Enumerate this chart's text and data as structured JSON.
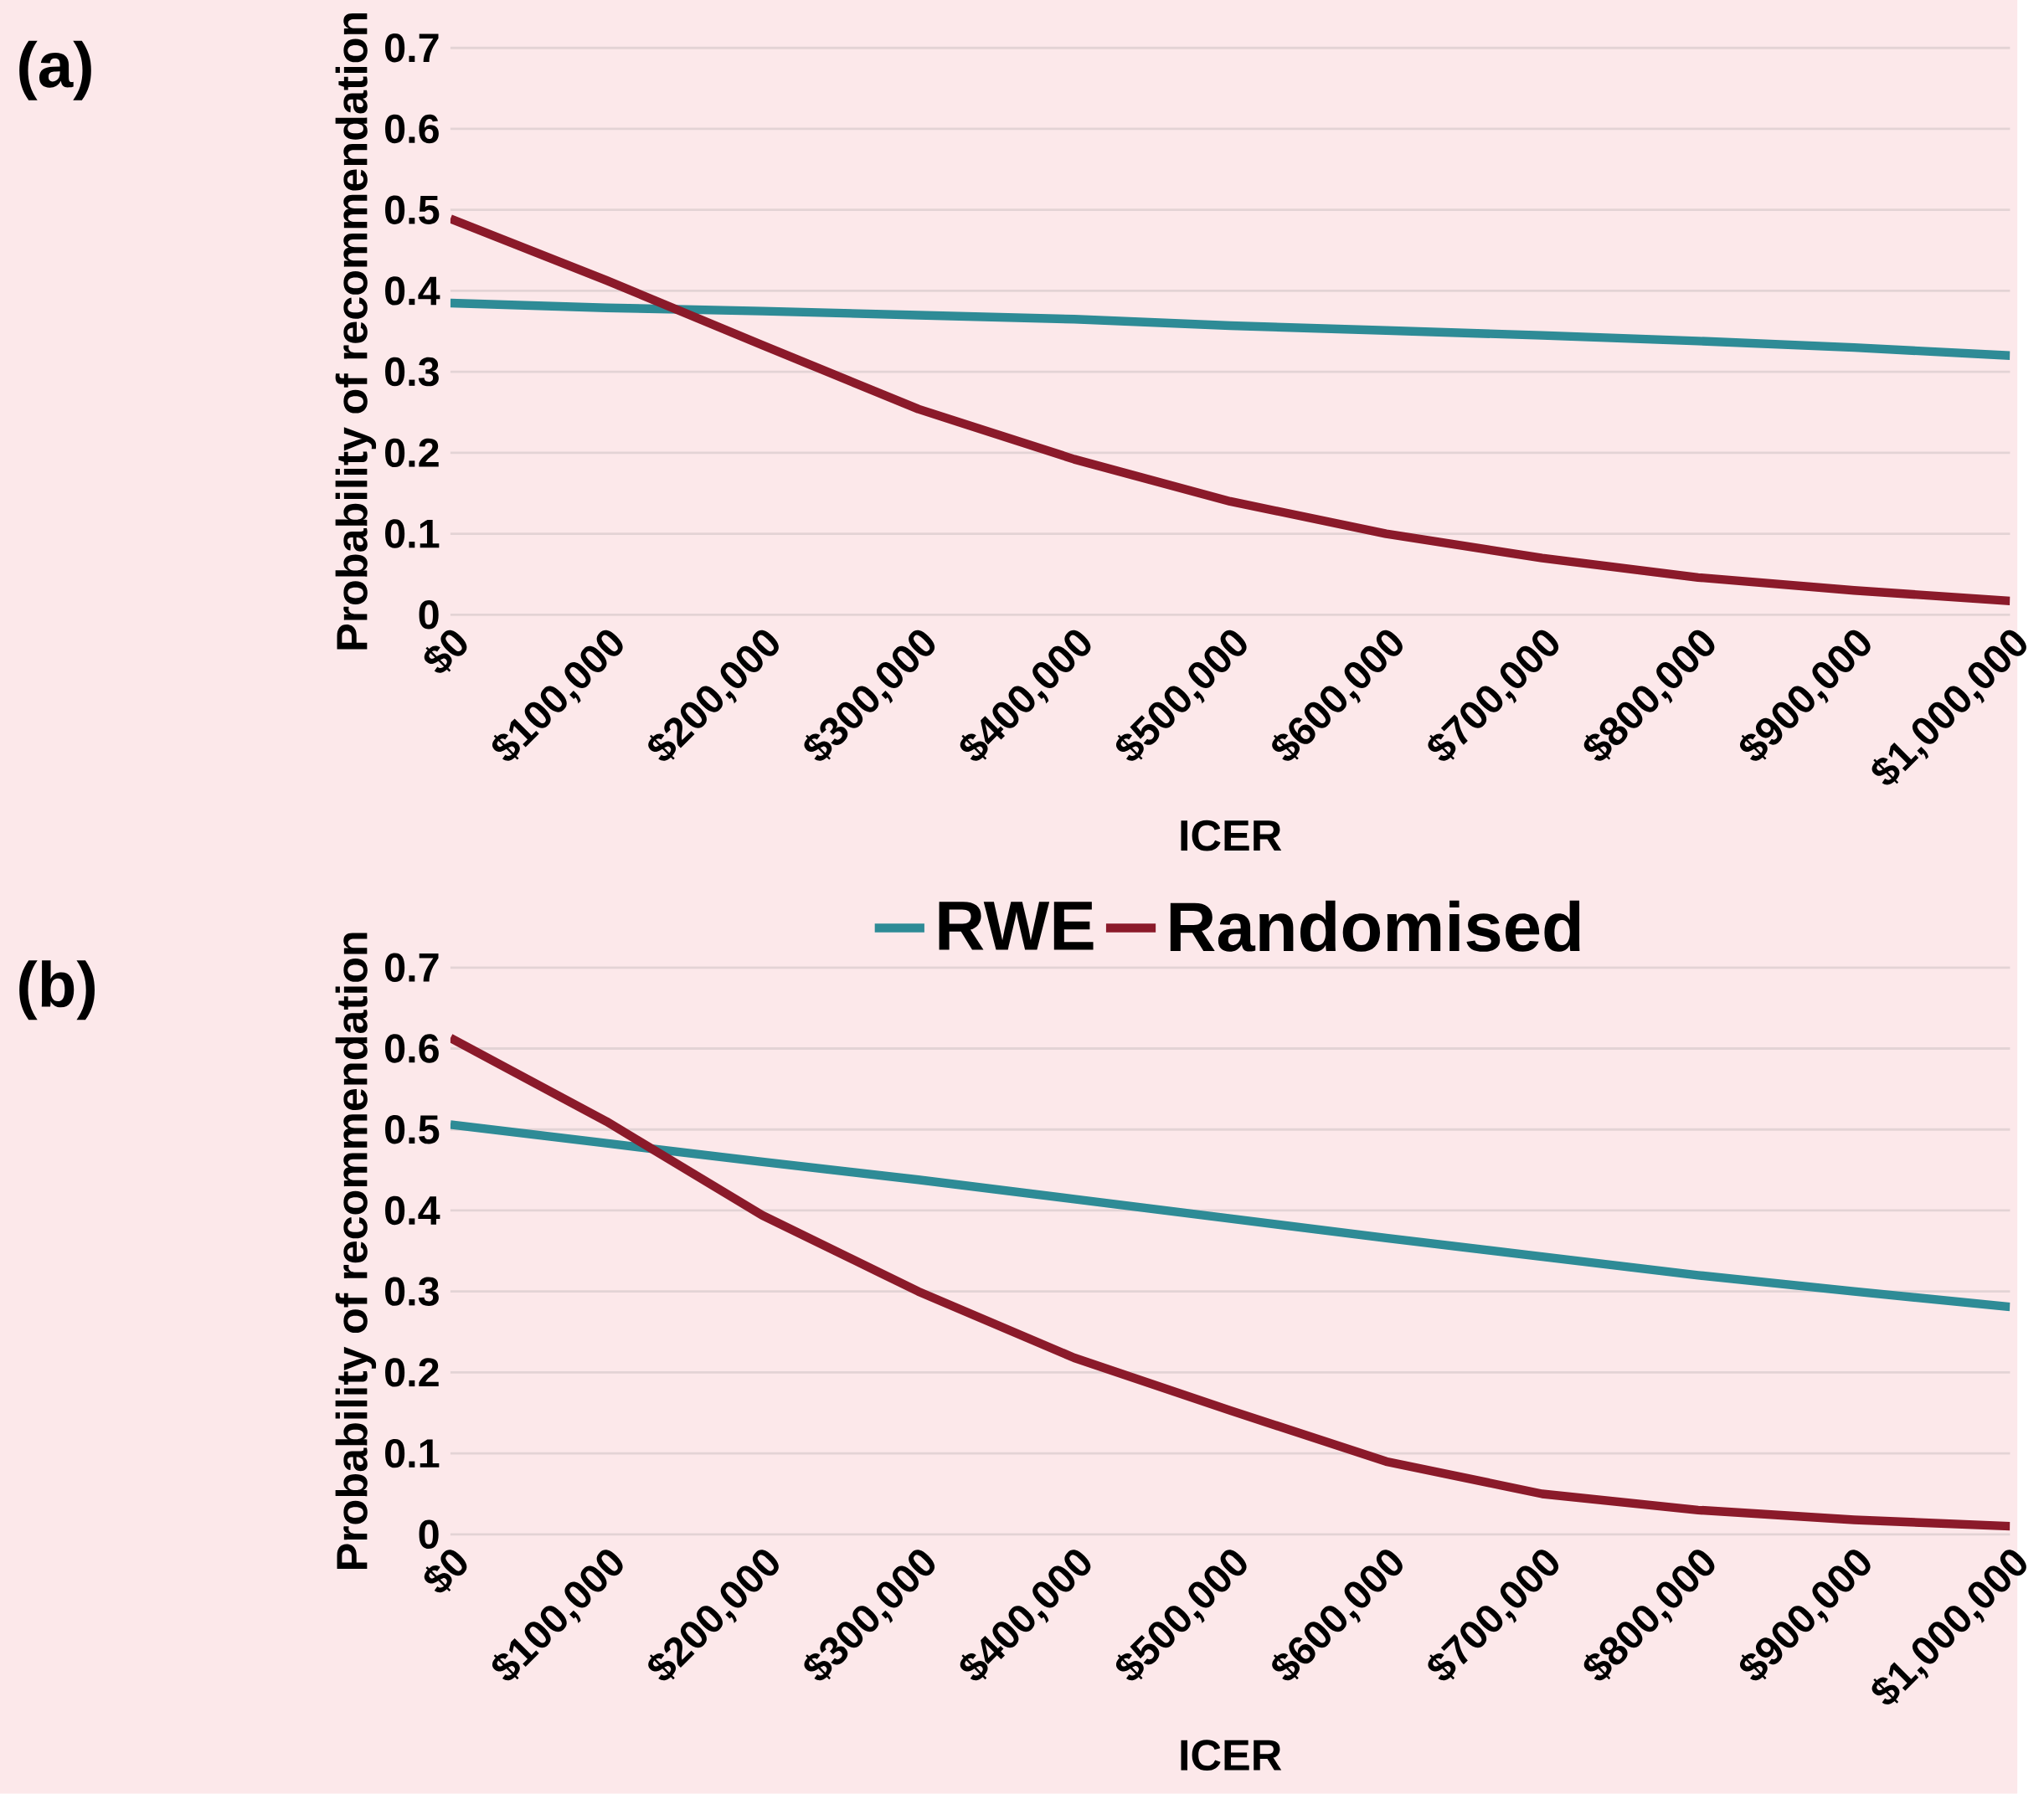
{
  "chart_data": [
    {
      "type": "line",
      "title": "(a)",
      "xlabel": "ICER",
      "ylabel": "Probability of recommendation",
      "x": [
        0,
        100000,
        200000,
        300000,
        400000,
        500000,
        600000,
        700000,
        800000,
        900000,
        1000000
      ],
      "series": [
        {
          "color": "#2e8b96",
          "values": [
            0.385,
            0.379,
            0.375,
            0.37,
            0.365,
            0.357,
            0.351,
            0.345,
            0.338,
            0.33,
            0.32
          ]
        },
        {
          "color": "#8b1a2a",
          "values": [
            0.489,
            0.413,
            0.333,
            0.254,
            0.192,
            0.14,
            0.1,
            0.07,
            0.046,
            0.03,
            0.017
          ]
        }
      ],
      "xlim": [
        0,
        1000000
      ],
      "xticks": [
        {
          "value": 0,
          "label": "$0"
        },
        {
          "value": 100000,
          "label": "$100,000"
        },
        {
          "value": 200000,
          "label": "$200,000"
        },
        {
          "value": 300000,
          "label": "$300,000"
        },
        {
          "value": 400000,
          "label": "$400,000"
        },
        {
          "value": 500000,
          "label": "$500,000"
        },
        {
          "value": 600000,
          "label": "$600,000"
        },
        {
          "value": 700000,
          "label": "$700,000"
        },
        {
          "value": 800000,
          "label": "$800,000"
        },
        {
          "value": 900000,
          "label": "$900,000"
        },
        {
          "value": 1000000,
          "label": "$1,000,000"
        }
      ],
      "ylim": [
        0,
        0.7
      ],
      "yticks": [
        0,
        0.1,
        0.2,
        0.3,
        0.4,
        0.5,
        0.6,
        0.7
      ],
      "grid": "y"
    },
    {
      "type": "line",
      "title": "(b)",
      "xlabel": "ICER",
      "ylabel": "Probability of recommendation",
      "x": [
        0,
        100000,
        200000,
        300000,
        400000,
        500000,
        600000,
        700000,
        800000,
        900000,
        1000000
      ],
      "series": [
        {
          "name": "RWE",
          "color": "#2e8b96",
          "values": [
            0.506,
            0.483,
            0.46,
            0.438,
            0.414,
            0.39,
            0.366,
            0.343,
            0.32,
            0.3,
            0.281
          ]
        },
        {
          "name": "Randomised",
          "color": "#8b1a2a",
          "values": [
            0.613,
            0.51,
            0.394,
            0.3,
            0.218,
            0.153,
            0.09,
            0.05,
            0.03,
            0.018,
            0.01
          ]
        }
      ],
      "xlim": [
        0,
        1000000
      ],
      "xticks": [
        {
          "value": 0,
          "label": "$0"
        },
        {
          "value": 100000,
          "label": "$100,000"
        },
        {
          "value": 200000,
          "label": "$200,000"
        },
        {
          "value": 300000,
          "label": "$300,000"
        },
        {
          "value": 400000,
          "label": "$400,000"
        },
        {
          "value": 500000,
          "label": "$500,000"
        },
        {
          "value": 600000,
          "label": "$600,000"
        },
        {
          "value": 700000,
          "label": "$700,000"
        },
        {
          "value": 800000,
          "label": "$800,000"
        },
        {
          "value": 900000,
          "label": "$900,000"
        },
        {
          "value": 1000000,
          "label": "$1,000,000"
        }
      ],
      "ylim": [
        0,
        0.7
      ],
      "yticks": [
        0,
        0.1,
        0.2,
        0.3,
        0.4,
        0.5,
        0.6,
        0.7
      ],
      "grid": "y",
      "legend": "top"
    }
  ]
}
